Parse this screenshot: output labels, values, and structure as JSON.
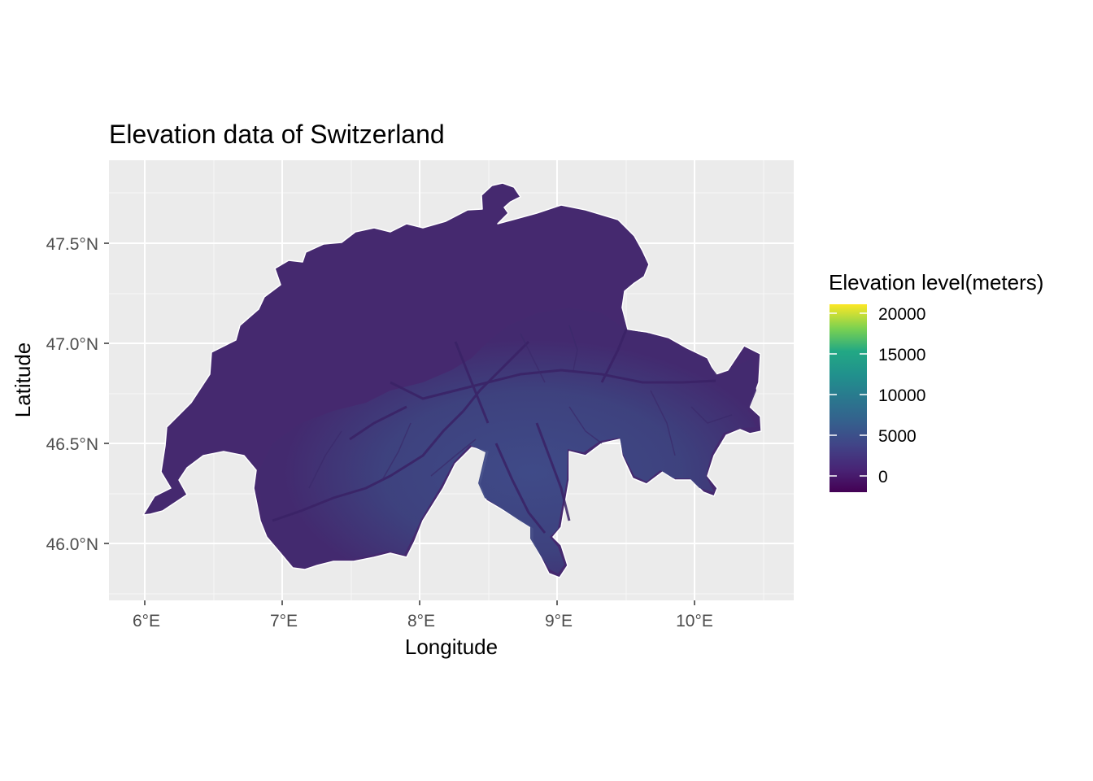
{
  "title": "Elevation data of Switzerland",
  "x_axis": {
    "label": "Longitude",
    "ticks": [
      "6°E",
      "7°E",
      "8°E",
      "9°E",
      "10°E"
    ]
  },
  "y_axis": {
    "label": "Latitude",
    "ticks": [
      "46.0°N",
      "46.5°N",
      "47.0°N",
      "47.5°N"
    ]
  },
  "legend": {
    "title": "Elevation level(meters)",
    "labels": [
      "20000",
      "15000",
      "10000",
      "5000",
      "0"
    ],
    "placement": "right"
  },
  "chart_data": {
    "type": "heatmap",
    "title": "Elevation data of Switzerland",
    "xlabel": "Longitude",
    "ylabel": "Latitude",
    "x_ticks": [
      6,
      7,
      8,
      9,
      10
    ],
    "y_ticks": [
      46.0,
      46.5,
      47.0,
      47.5
    ],
    "xlim": [
      5.73,
      10.72
    ],
    "ylim": [
      45.71,
      47.91
    ],
    "grid": true,
    "fill_scale": "viridis",
    "fill_breaks": [
      0,
      5000,
      10000,
      15000,
      20000
    ],
    "fill_limits": [
      -1000,
      21000
    ],
    "legend_position": "right",
    "colors": {
      "panel_background": "#ebebeb",
      "grid": "#ffffff",
      "viridis_low": "#440154",
      "viridis_mid": "#21908c",
      "viridis_high": "#fde725",
      "lowland_fill": "#45286f",
      "alpine_fill": "#3f4a88"
    }
  }
}
